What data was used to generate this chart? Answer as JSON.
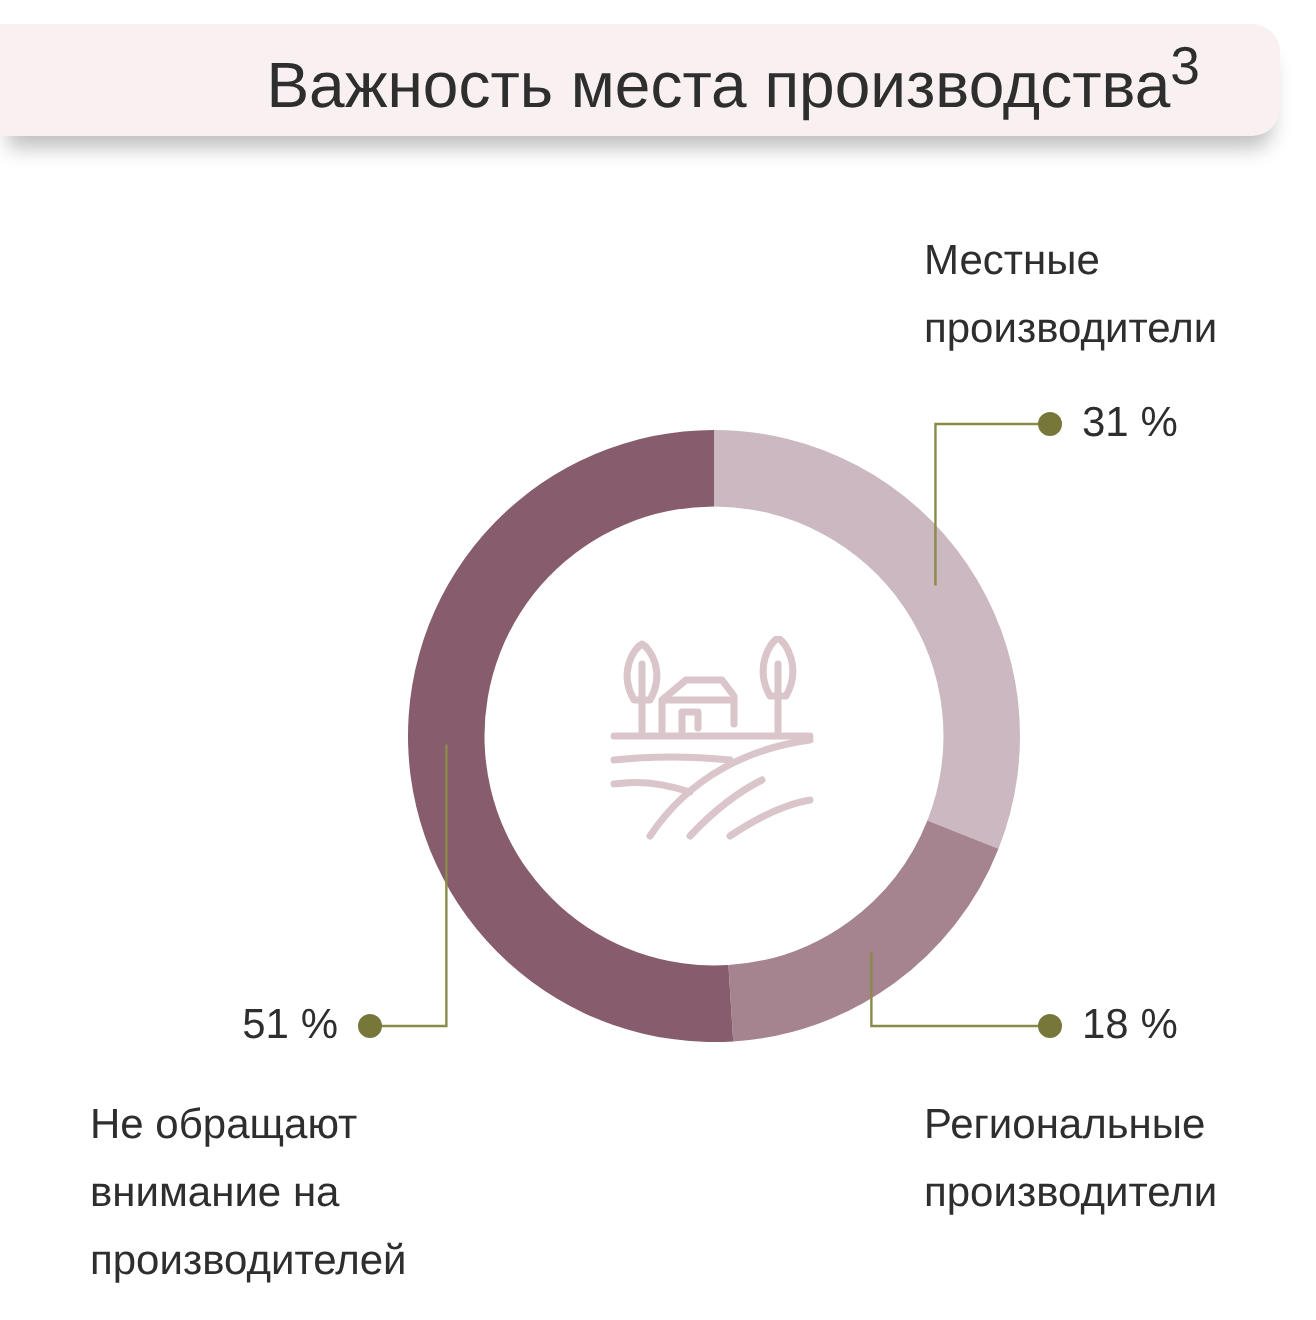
{
  "chart_data": {
    "type": "donut",
    "title": "Важность места производства$^{3}$",
    "categories": [
      "Местные производители",
      "Региональные производители",
      "Не обращают внимание на производителей"
    ],
    "values": [
      31,
      18,
      51
    ],
    "colors": [
      "#cbb8c0",
      "#a6848f",
      "#875c6c"
    ],
    "value_labels": [
      "31 %",
      "18 %",
      "51 %"
    ]
  }
}
